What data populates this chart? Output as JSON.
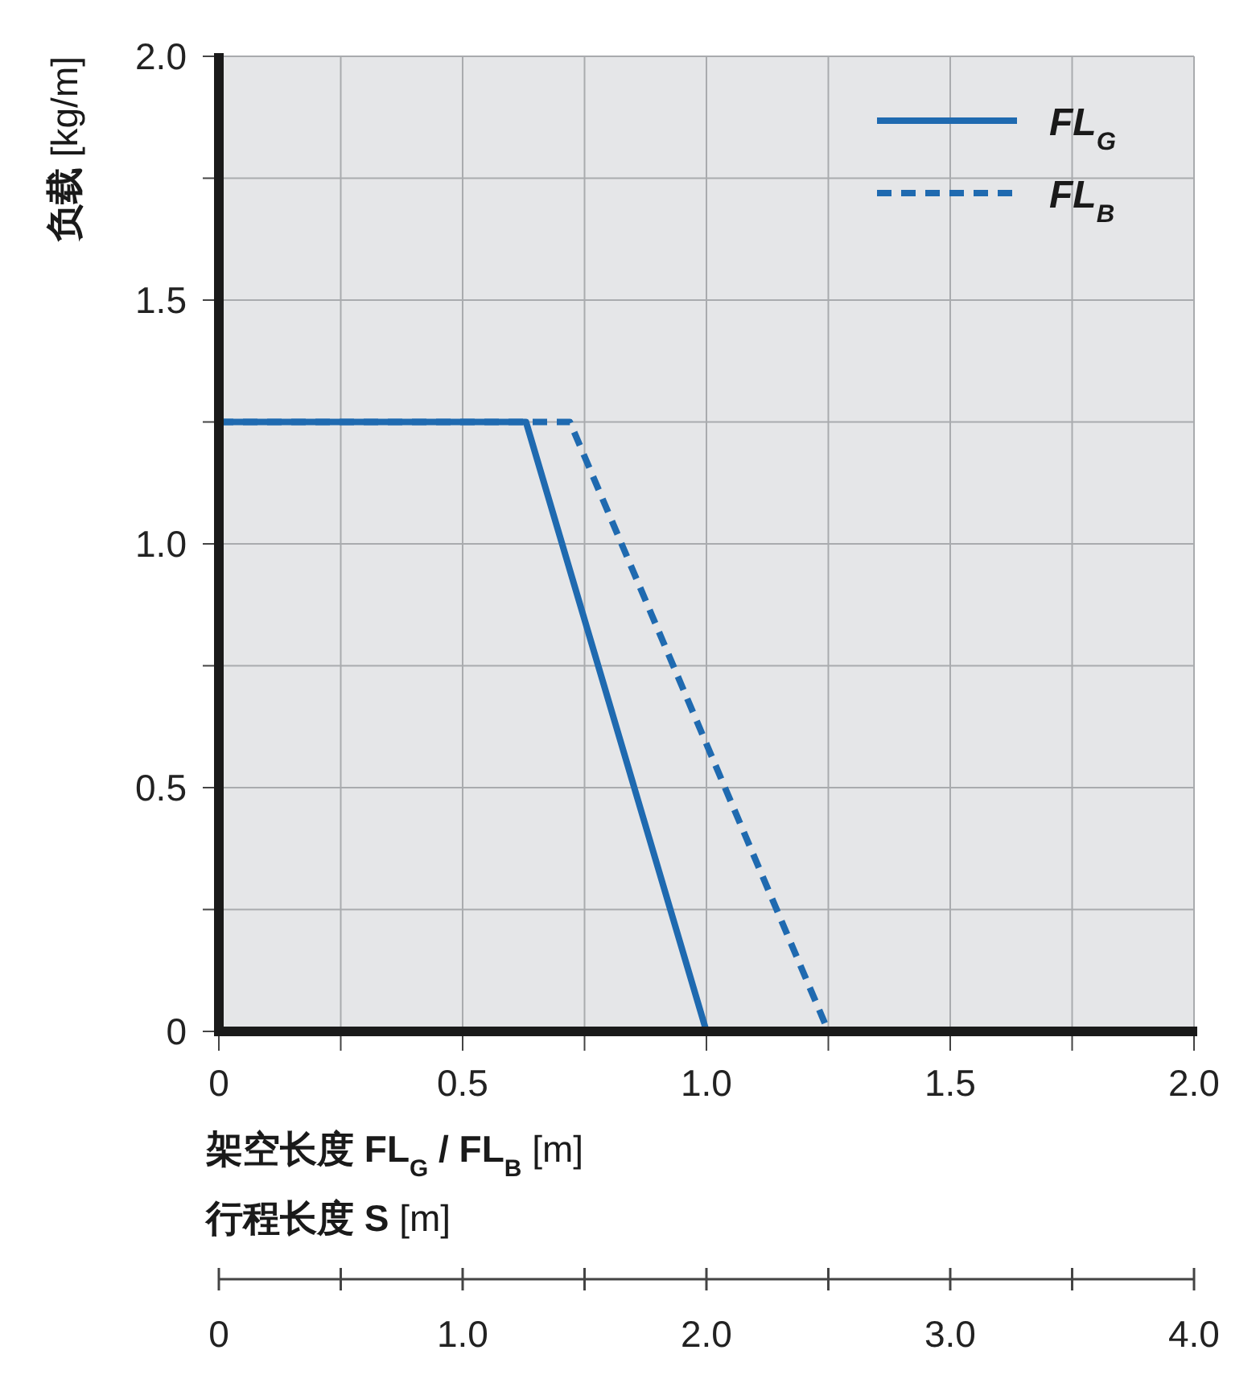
{
  "chart_data": {
    "type": "line",
    "ylabel": "**负载** [kg/m]",
    "xlabel": "**架空长度 FL**$_{G}$ **/ FL**$_{B}$ [m]",
    "x2label": "**行程长度 S** [m]",
    "xlim": [
      0,
      2
    ],
    "ylim": [
      0,
      2
    ],
    "xticks": [
      0,
      {
        "value": 0.25,
        "label": null
      },
      0.5,
      {
        "value": 0.75,
        "label": null
      },
      {
        "value": 1,
        "label": "1.0"
      },
      {
        "value": 1.25,
        "label": null
      },
      1.5,
      {
        "value": 1.75,
        "label": null
      },
      {
        "value": 2,
        "label": "2.0"
      }
    ],
    "yticks": [
      0,
      {
        "value": 0.25,
        "label": null
      },
      0.5,
      {
        "value": 0.75,
        "label": null
      },
      {
        "value": 1,
        "label": "1.0"
      },
      {
        "value": 1.25,
        "label": null
      },
      1.5,
      {
        "value": 1.75,
        "label": null
      },
      {
        "value": 2,
        "label": "2.0"
      }
    ],
    "x2lim": [
      0,
      4
    ],
    "x2ticks": [
      0,
      {
        "value": 0.5,
        "label": null
      },
      {
        "value": 1,
        "label": "1.0"
      },
      {
        "value": 1.5,
        "label": null
      },
      {
        "value": 2,
        "label": "2.0"
      },
      {
        "value": 2.5,
        "label": null
      },
      {
        "value": 3,
        "label": "3.0"
      },
      {
        "value": 3.5,
        "label": null
      },
      {
        "value": 4,
        "label": "4.0"
      }
    ],
    "grid": true,
    "legend": "top right",
    "series": [
      {
        "name": "FL$_{G}$",
        "color": "#1f6ab0",
        "line_style": "solid",
        "x": [
          0,
          0.63,
          1.0
        ],
        "values": [
          1.25,
          1.25,
          0
        ]
      },
      {
        "name": "FL$_{B}$",
        "color": "#1f6ab0",
        "line_style": "dashed",
        "x": [
          0,
          0.72,
          1.25
        ],
        "values": [
          1.25,
          1.25,
          0
        ]
      }
    ]
  }
}
